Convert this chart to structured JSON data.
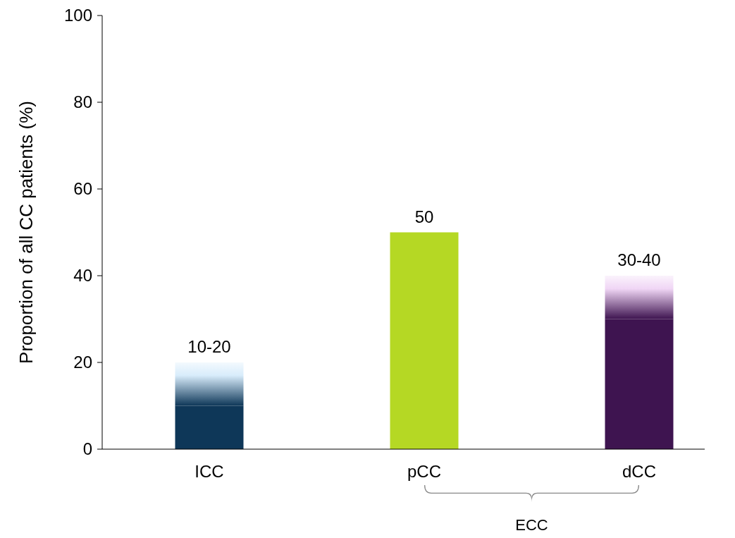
{
  "chart_data": {
    "type": "bar",
    "stacked": true,
    "ylabel": "Proportion of all CC patients (%)",
    "categories": [
      "ICC",
      "pCC",
      "dCC"
    ],
    "series": [
      {
        "colors": [
          "#0e3758",
          "#b5d824",
          "#3e1450"
        ],
        "values": [
          10,
          50,
          30
        ]
      },
      {
        "colors": [
          "#d8ecfb",
          "#b5d824",
          "#f0d6f5"
        ],
        "values": [
          10,
          0,
          10
        ]
      }
    ],
    "totals": [
      "10-20",
      "50",
      "30-40"
    ],
    "ylim": [
      0,
      100
    ],
    "yticks": [
      0,
      20,
      40,
      60,
      80,
      100
    ],
    "grid": false,
    "annotations": [
      "ECC"
    ]
  }
}
